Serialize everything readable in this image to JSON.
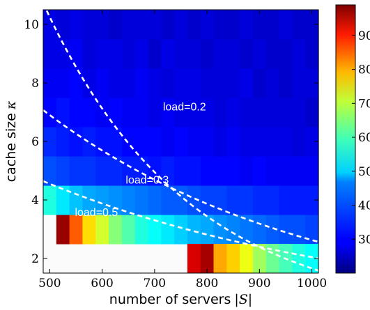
{
  "chart_data": {
    "type": "heatmap",
    "xlabel": "number of servers",
    "xlabel_math": "|S|",
    "ylabel": "cache size",
    "ylabel_math": "κ",
    "x_range": [
      487.5,
      1012.5
    ],
    "y_range": [
      1.5,
      10.5
    ],
    "x_ticks": [
      500,
      600,
      700,
      800,
      900,
      1000
    ],
    "y_ticks": [
      2,
      4,
      6,
      8,
      10
    ],
    "x_centers": [
      500,
      525,
      550,
      575,
      600,
      625,
      650,
      675,
      700,
      725,
      750,
      775,
      800,
      825,
      850,
      875,
      900,
      925,
      950,
      975,
      1000
    ],
    "y_centers": [
      2,
      3,
      4,
      5,
      6,
      7,
      8,
      9,
      10
    ],
    "values": [
      [
        null,
        null,
        null,
        null,
        null,
        null,
        null,
        null,
        null,
        null,
        null,
        null,
        null,
        null,
        null,
        null,
        null,
        null,
        null,
        null,
        null
      ],
      [
        null,
        97,
        82,
        72,
        66,
        60,
        56,
        52,
        50,
        48,
        46,
        44,
        43,
        41,
        40,
        39,
        38,
        37,
        36,
        36,
        35
      ],
      [
        52,
        48,
        45,
        43,
        42,
        41,
        40,
        39,
        38,
        37,
        37,
        36,
        35,
        35,
        34,
        34,
        33,
        33,
        32,
        32,
        32
      ],
      [
        36,
        35,
        34,
        34,
        33,
        33,
        32,
        32,
        31,
        32,
        31,
        31,
        30,
        30,
        30,
        29,
        30,
        29,
        29,
        29,
        29
      ],
      [
        33,
        32,
        31,
        32,
        31,
        31,
        30,
        30,
        30,
        29,
        30,
        29,
        29,
        28,
        29,
        28,
        28,
        28,
        28,
        27,
        28
      ],
      [
        30,
        31,
        30,
        30,
        29,
        30,
        29,
        29,
        28,
        29,
        28,
        28,
        28,
        27,
        28,
        27,
        27,
        27,
        27,
        27,
        26
      ],
      [
        29,
        29,
        30,
        28,
        29,
        28,
        28,
        29,
        28,
        27,
        28,
        28,
        27,
        27,
        27,
        28,
        26,
        27,
        26,
        27,
        27
      ],
      [
        28,
        28,
        29,
        27,
        28,
        28,
        27,
        28,
        26,
        28,
        27,
        27,
        26,
        27,
        27,
        26,
        27,
        26,
        26,
        27,
        26
      ],
      [
        28,
        27,
        28,
        27,
        27,
        26,
        27,
        27,
        27,
        26,
        27,
        26,
        27,
        26,
        26,
        27,
        26,
        26,
        27,
        26,
        26
      ]
    ],
    "row2_values": {
      "x": [
        775,
        800,
        825,
        850,
        875,
        900,
        925,
        950,
        975,
        1000
      ],
      "v": [
        92,
        96,
        76,
        73,
        68,
        62,
        58,
        55,
        52,
        50
      ]
    },
    "colorbar": {
      "min": 20,
      "max": 99,
      "ticks": [
        30,
        40,
        50,
        60,
        70,
        80,
        90
      ]
    },
    "contours": [
      {
        "label": "load=0.2",
        "k0": 10.25,
        "decay": 0.00364
      },
      {
        "label": "load=0.3",
        "k0": 6.9,
        "decay": 0.00193
      },
      {
        "label": "load=0.5",
        "k0": 4.55,
        "decay": 0.0016
      }
    ]
  }
}
